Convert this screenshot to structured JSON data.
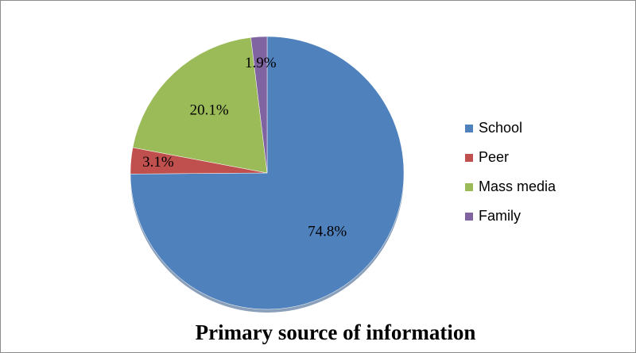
{
  "chart_data": {
    "type": "pie",
    "title": "Primary source of information",
    "categories": [
      "School",
      "Peer",
      "Mass media",
      "Family"
    ],
    "values": [
      74.8,
      3.1,
      20.1,
      1.9
    ],
    "value_labels": [
      "74.8%",
      "3.1%",
      "20.1%",
      "1.9%"
    ],
    "colors": [
      "#4f81bd",
      "#c0504d",
      "#9bbb59",
      "#8064a2"
    ],
    "legend": "right"
  }
}
